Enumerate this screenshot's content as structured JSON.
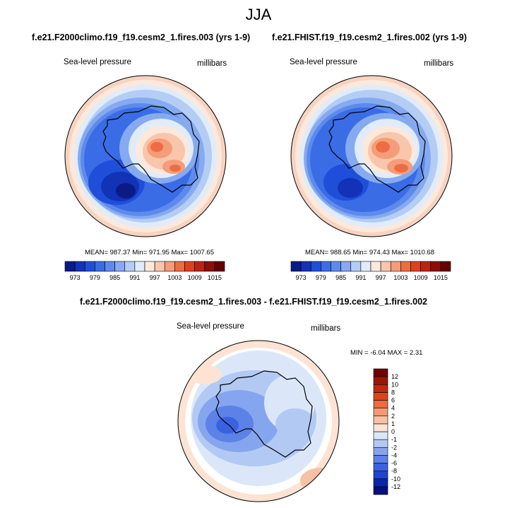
{
  "page": {
    "title": "JJA"
  },
  "chart_data": [
    {
      "type": "heatmap",
      "projection": "south-polar-stereographic",
      "title": "f.e21.F2000climo.f19_f19.cesm2_1.fires.003 (yrs 1-9)",
      "left_label": "Sea-level pressure",
      "right_label": "millibars",
      "stats": "MEAN= 987.37  Min= 971.95  Max= 1007.65",
      "colorbar": {
        "orientation": "horizontal",
        "levels": [
          973,
          976,
          979,
          982,
          985,
          988,
          991,
          994,
          997,
          1000,
          1003,
          1006,
          1009,
          1012,
          1015
        ],
        "tick_labels": [
          "973",
          "979",
          "985",
          "991",
          "997",
          "1003",
          "1009",
          "1015"
        ],
        "colors": [
          "#0a1b86",
          "#1232b8",
          "#1f4fd9",
          "#3a6ce6",
          "#5d8bec",
          "#86aaf0",
          "#b4cdf5",
          "#e0ecfa",
          "#fde8dc",
          "#f9c6ab",
          "#f59c78",
          "#ee6c44",
          "#dd4120",
          "#bb2412",
          "#8b0f08",
          "#640000"
        ]
      },
      "colors": {
        "ocean_outer": "#f7d3c0",
        "ring": "#3e6ee6",
        "low_center": "#0d2a93",
        "interior_high": "#f07b4a"
      }
    },
    {
      "type": "heatmap",
      "projection": "south-polar-stereographic",
      "title": "f.e21.FHIST.f19_f19.cesm2_1.fires.002 (yrs 1-9)",
      "left_label": "Sea-level pressure",
      "right_label": "millibars",
      "stats": "MEAN= 988.65  Min= 974.43  Max= 1010.68",
      "colorbar": {
        "orientation": "horizontal",
        "levels": [
          973,
          976,
          979,
          982,
          985,
          988,
          991,
          994,
          997,
          1000,
          1003,
          1006,
          1009,
          1012,
          1015
        ],
        "tick_labels": [
          "973",
          "979",
          "985",
          "991",
          "997",
          "1003",
          "1009",
          "1015"
        ],
        "colors": [
          "#0a1b86",
          "#1232b8",
          "#1f4fd9",
          "#3a6ce6",
          "#5d8bec",
          "#86aaf0",
          "#b4cdf5",
          "#e0ecfa",
          "#fde8dc",
          "#f9c6ab",
          "#f59c78",
          "#ee6c44",
          "#dd4120",
          "#bb2412",
          "#8b0f08",
          "#640000"
        ]
      }
    },
    {
      "type": "heatmap",
      "projection": "south-polar-stereographic",
      "title": "f.e21.F2000climo.f19_f19.cesm2_1.fires.003 - f.e21.FHIST.f19_f19.cesm2_1.fires.002",
      "left_label": "Sea-level pressure",
      "right_label": "millibars",
      "stats": "MIN =  -6.04 MAX =   2.31",
      "colorbar": {
        "orientation": "vertical",
        "levels": [
          -12,
          -10,
          -8,
          -6,
          -4,
          -2,
          -1,
          0,
          1,
          2,
          4,
          6,
          8,
          10,
          12
        ],
        "tick_labels": [
          "-12",
          "-10",
          "-8",
          "-6",
          "-4",
          "-2",
          "-1",
          "0",
          "1",
          "2",
          "4",
          "6",
          "8",
          "10",
          "12"
        ],
        "colors": [
          "#06127a",
          "#0b27a6",
          "#1f44d0",
          "#3a62e0",
          "#5c82e8",
          "#86a5ef",
          "#b2c9f4",
          "#dbe7f9",
          "#fde3d4",
          "#f8c1a3",
          "#f39a73",
          "#ea6c40",
          "#d9461e",
          "#bd2a10",
          "#9a1708",
          "#6e0200"
        ]
      }
    }
  ]
}
